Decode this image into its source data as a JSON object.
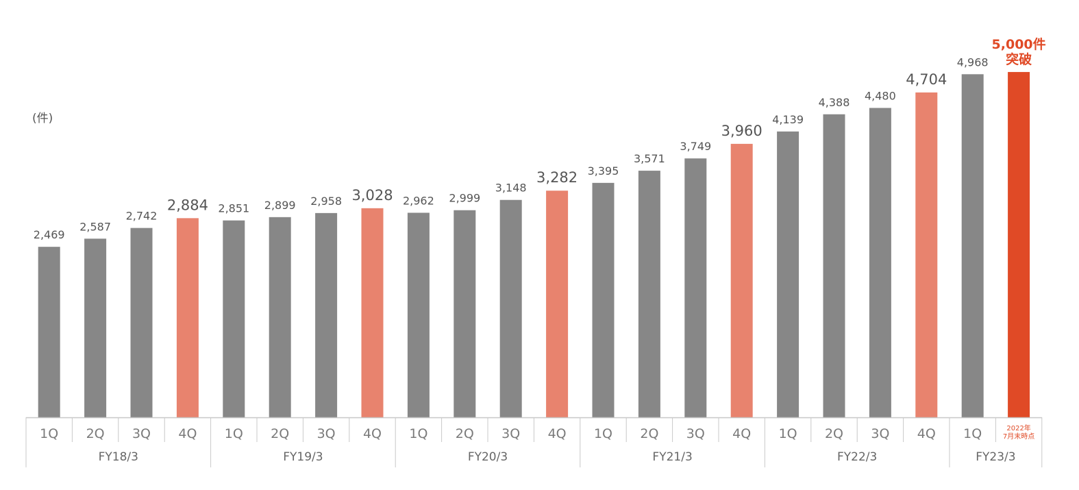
{
  "unit_label": "(件)",
  "chart_data": {
    "type": "bar",
    "title": "",
    "xlabel": "",
    "ylabel": "",
    "ylim": [
      0,
      5100
    ],
    "grid": false,
    "legend": "none",
    "colors": {
      "regular": "#878787",
      "q4": "#E8836E",
      "latest": "#E04A26",
      "label_text": "#555555",
      "note_text": "#E04A26",
      "axis_line": "#C8C8C8"
    },
    "categories": [
      "1Q",
      "2Q",
      "3Q",
      "4Q",
      "1Q",
      "2Q",
      "3Q",
      "4Q",
      "1Q",
      "2Q",
      "3Q",
      "4Q",
      "1Q",
      "2Q",
      "3Q",
      "4Q",
      "1Q",
      "2Q",
      "3Q",
      "4Q",
      "1Q",
      "2022年\n7月末時点"
    ],
    "values": [
      2469,
      2587,
      2742,
      2884,
      2851,
      2899,
      2958,
      3028,
      2962,
      2999,
      3148,
      3282,
      3395,
      3571,
      3749,
      3960,
      4139,
      4388,
      4480,
      4704,
      4968,
      5000
    ],
    "value_labels": [
      "2,469",
      "2,587",
      "2,742",
      "2,884",
      "2,851",
      "2,899",
      "2,958",
      "3,028",
      "2,962",
      "2,999",
      "3,148",
      "3,282",
      "3,395",
      "3,571",
      "3,749",
      "3,960",
      "4,139",
      "4,388",
      "4,480",
      "4,704",
      "4,968",
      "5,000件\n突破"
    ],
    "bar_style": [
      "regular",
      "regular",
      "regular",
      "q4",
      "regular",
      "regular",
      "regular",
      "q4",
      "regular",
      "regular",
      "regular",
      "q4",
      "regular",
      "regular",
      "regular",
      "q4",
      "regular",
      "regular",
      "regular",
      "q4",
      "regular",
      "latest"
    ],
    "groups": [
      {
        "label": "FY18/3",
        "count": 4
      },
      {
        "label": "FY19/3",
        "count": 4
      },
      {
        "label": "FY20/3",
        "count": 4
      },
      {
        "label": "FY21/3",
        "count": 4
      },
      {
        "label": "FY22/3",
        "count": 4
      },
      {
        "label": "FY23/3",
        "count": 2
      }
    ]
  }
}
